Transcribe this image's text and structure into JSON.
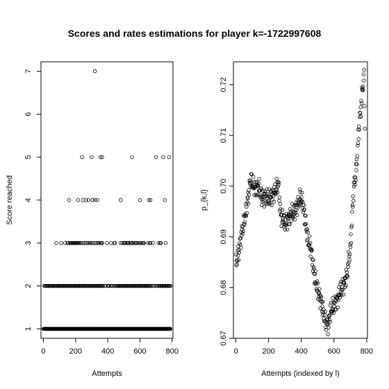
{
  "title": "Scores and rates estimations for player k=-1722997608",
  "chart_data": [
    {
      "type": "scatter",
      "xlabel": "Attempts",
      "ylabel": "Score reached",
      "xlim": [
        -15,
        805
      ],
      "ylim": [
        0.78,
        7.22
      ],
      "xticks": [
        0,
        200,
        400,
        600,
        800
      ],
      "yticks": [
        1,
        2,
        3,
        4,
        5,
        6,
        7
      ],
      "xtick_labels": [
        "0",
        "200",
        "400",
        "600",
        "800"
      ],
      "ytick_labels": [
        "1",
        "2",
        "3",
        "4",
        "5",
        "6",
        "7"
      ],
      "n_points": 790,
      "baseline_value": 1,
      "points_above_baseline": [
        {
          "y": 7,
          "x": [
            320
          ]
        },
        {
          "y": 5,
          "x": [
            240,
            300,
            355,
            365,
            550,
            700,
            745,
            780
          ]
        },
        {
          "y": 4,
          "x": [
            160,
            215,
            245,
            265,
            280,
            305,
            320,
            335,
            480,
            600,
            655,
            665,
            755
          ]
        },
        {
          "y": 3,
          "x": [
            80,
            110,
            135,
            150,
            155,
            165,
            170,
            175,
            180,
            185,
            190,
            195,
            200,
            205,
            210,
            215,
            220,
            225,
            235,
            245,
            255,
            265,
            275,
            285,
            290,
            300,
            310,
            320,
            330,
            340,
            345,
            355,
            360,
            365,
            395,
            420,
            440,
            445,
            480,
            490,
            500,
            505,
            510,
            520,
            525,
            530,
            540,
            545,
            550,
            560,
            570,
            575,
            580,
            590,
            600,
            605,
            615,
            620,
            625,
            650,
            660,
            665,
            680,
            715,
            725,
            730,
            760
          ]
        },
        {
          "y": 2,
          "x": [
            5,
            10,
            15,
            20,
            25,
            30,
            35,
            40,
            45,
            50,
            55,
            60,
            65,
            70,
            75,
            80,
            85,
            90,
            95,
            100,
            105,
            110,
            115,
            120,
            125,
            130,
            135,
            140,
            145,
            150,
            155,
            160,
            165,
            170,
            175,
            180,
            185,
            190,
            195,
            200,
            205,
            210,
            215,
            220,
            225,
            230,
            235,
            240,
            245,
            250,
            255,
            260,
            265,
            270,
            275,
            280,
            285,
            290,
            295,
            300,
            305,
            310,
            315,
            320,
            325,
            330,
            335,
            340,
            345,
            350,
            355,
            360,
            365,
            370,
            380,
            385,
            400,
            405,
            410,
            420,
            425,
            430,
            440,
            450,
            455,
            460,
            465,
            470,
            475,
            480,
            485,
            490,
            495,
            500,
            505,
            510,
            515,
            520,
            525,
            530,
            535,
            540,
            545,
            550,
            555,
            560,
            565,
            570,
            575,
            580,
            585,
            590,
            595,
            600,
            605,
            610,
            615,
            620,
            625,
            630,
            635,
            640,
            645,
            650,
            655,
            660,
            665,
            670,
            680,
            690,
            700,
            705,
            715,
            720,
            725,
            730,
            735,
            740,
            745,
            750,
            755,
            760,
            765,
            770,
            775,
            780,
            785,
            790
          ]
        }
      ]
    },
    {
      "type": "scatter",
      "xlabel": "Attempts (indexed by l)",
      "ylabel": "p_{k,l}",
      "xlim": [
        -15,
        805
      ],
      "ylim": [
        0.67,
        0.7245
      ],
      "xticks": [
        0,
        200,
        400,
        600,
        800
      ],
      "yticks": [
        0.67,
        0.68,
        0.69,
        0.7,
        0.71,
        0.72
      ],
      "xtick_labels": [
        "0",
        "200",
        "400",
        "600",
        "800"
      ],
      "ytick_labels": [
        "0.67",
        "0.68",
        "0.69",
        "0.70",
        "0.71",
        "0.72"
      ],
      "series_keypoints": {
        "x": [
          0,
          20,
          40,
          60,
          80,
          90,
          100,
          120,
          140,
          160,
          180,
          200,
          220,
          240,
          260,
          275,
          290,
          300,
          320,
          340,
          360,
          380,
          395,
          410,
          420,
          440,
          460,
          480,
          500,
          520,
          540,
          550,
          565,
          580,
          600,
          620,
          640,
          660,
          680,
          690,
          700,
          710,
          720,
          735,
          745,
          755,
          765,
          775,
          785,
          790
        ],
        "y": [
          0.6845,
          0.6875,
          0.6915,
          0.6945,
          0.699,
          0.7015,
          0.7005,
          0.6995,
          0.7,
          0.6975,
          0.698,
          0.6975,
          0.698,
          0.699,
          0.7005,
          0.694,
          0.6935,
          0.6925,
          0.6935,
          0.6945,
          0.695,
          0.6965,
          0.698,
          0.6965,
          0.6945,
          0.6895,
          0.6875,
          0.6825,
          0.6795,
          0.6775,
          0.6745,
          0.673,
          0.6725,
          0.6755,
          0.6765,
          0.6775,
          0.6795,
          0.6805,
          0.6825,
          0.6855,
          0.6875,
          0.6935,
          0.6995,
          0.7025,
          0.7075,
          0.7125,
          0.7155,
          0.7195,
          0.7215,
          0.7095
        ]
      }
    }
  ]
}
